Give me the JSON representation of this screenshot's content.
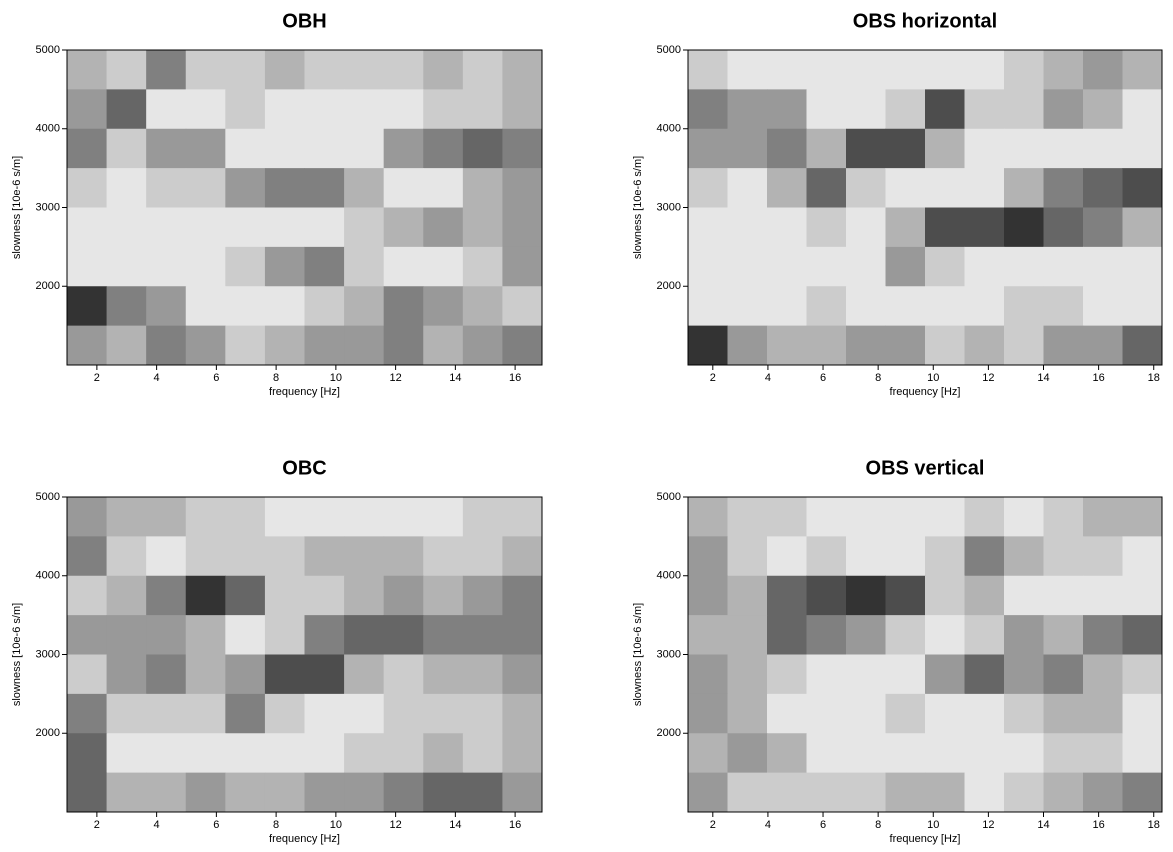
{
  "chart_data": [
    {
      "type": "heatmap",
      "title": "OBH",
      "x_label": "frequency [Hz]",
      "y_label": "slowness [10e-6 s/m]",
      "xlim": [
        1,
        16.9
      ],
      "ylim": [
        1000,
        5000
      ],
      "xticks": [
        2,
        4,
        6,
        8,
        10,
        12,
        14,
        16
      ],
      "yticks": [
        2000,
        3000,
        4000,
        5000
      ],
      "colors": [
        "#ffffff",
        "#000000"
      ],
      "z": [
        [
          0.3,
          0.2,
          0.5,
          0.2,
          0.2,
          0.3,
          0.2,
          0.2,
          0.2,
          0.3,
          0.2,
          0.3
        ],
        [
          0.4,
          0.6,
          0.1,
          0.1,
          0.2,
          0.1,
          0.1,
          0.1,
          0.1,
          0.2,
          0.2,
          0.3
        ],
        [
          0.5,
          0.2,
          0.4,
          0.4,
          0.1,
          0.1,
          0.1,
          0.1,
          0.4,
          0.5,
          0.6,
          0.5
        ],
        [
          0.2,
          0.1,
          0.2,
          0.2,
          0.4,
          0.5,
          0.5,
          0.3,
          0.1,
          0.1,
          0.3,
          0.4
        ],
        [
          0.1,
          0.1,
          0.1,
          0.1,
          0.1,
          0.1,
          0.1,
          0.2,
          0.3,
          0.4,
          0.3,
          0.4
        ],
        [
          0.1,
          0.1,
          0.1,
          0.1,
          0.2,
          0.4,
          0.5,
          0.2,
          0.1,
          0.1,
          0.2,
          0.4
        ],
        [
          0.8,
          0.5,
          0.4,
          0.1,
          0.1,
          0.1,
          0.2,
          0.3,
          0.5,
          0.4,
          0.3,
          0.2
        ],
        [
          0.4,
          0.3,
          0.5,
          0.4,
          0.2,
          0.3,
          0.4,
          0.4,
          0.5,
          0.3,
          0.4,
          0.5
        ]
      ]
    },
    {
      "type": "heatmap",
      "title": "OBS horizontal",
      "x_label": "frequency [Hz]",
      "y_label": "slowness [10e-6 s/m]",
      "xlim": [
        1.1,
        18.3
      ],
      "ylim": [
        1000,
        5000
      ],
      "xticks": [
        2,
        4,
        6,
        8,
        10,
        12,
        14,
        16,
        18
      ],
      "yticks": [
        2000,
        3000,
        4000,
        5000
      ],
      "colors": [
        "#ffffff",
        "#000000"
      ],
      "z": [
        [
          0.2,
          0.1,
          0.1,
          0.1,
          0.1,
          0.1,
          0.1,
          0.1,
          0.2,
          0.3,
          0.4,
          0.3
        ],
        [
          0.5,
          0.4,
          0.4,
          0.1,
          0.1,
          0.2,
          0.7,
          0.2,
          0.2,
          0.4,
          0.3,
          0.1
        ],
        [
          0.4,
          0.4,
          0.5,
          0.3,
          0.7,
          0.7,
          0.3,
          0.1,
          0.1,
          0.1,
          0.1,
          0.1
        ],
        [
          0.2,
          0.1,
          0.3,
          0.6,
          0.2,
          0.1,
          0.1,
          0.1,
          0.3,
          0.5,
          0.6,
          0.7
        ],
        [
          0.1,
          0.1,
          0.1,
          0.2,
          0.1,
          0.3,
          0.7,
          0.7,
          0.8,
          0.6,
          0.5,
          0.3
        ],
        [
          0.1,
          0.1,
          0.1,
          0.1,
          0.1,
          0.4,
          0.2,
          0.1,
          0.1,
          0.1,
          0.1,
          0.1
        ],
        [
          0.1,
          0.1,
          0.1,
          0.2,
          0.1,
          0.1,
          0.1,
          0.1,
          0.2,
          0.2,
          0.1,
          0.1
        ],
        [
          0.8,
          0.4,
          0.3,
          0.3,
          0.4,
          0.4,
          0.2,
          0.3,
          0.2,
          0.4,
          0.4,
          0.6
        ]
      ]
    },
    {
      "type": "heatmap",
      "title": "OBC",
      "x_label": "frequency [Hz]",
      "y_label": "slowness [10e-6 s/m]",
      "xlim": [
        1,
        16.9
      ],
      "ylim": [
        1000,
        5000
      ],
      "xticks": [
        2,
        4,
        6,
        8,
        10,
        12,
        14,
        16
      ],
      "yticks": [
        2000,
        3000,
        4000,
        5000
      ],
      "colors": [
        "#ffffff",
        "#000000"
      ],
      "z": [
        [
          0.4,
          0.3,
          0.3,
          0.2,
          0.2,
          0.1,
          0.1,
          0.1,
          0.1,
          0.1,
          0.2,
          0.2
        ],
        [
          0.5,
          0.2,
          0.1,
          0.2,
          0.2,
          0.2,
          0.3,
          0.3,
          0.3,
          0.2,
          0.2,
          0.3
        ],
        [
          0.2,
          0.3,
          0.5,
          0.8,
          0.6,
          0.2,
          0.2,
          0.3,
          0.4,
          0.3,
          0.4,
          0.5
        ],
        [
          0.4,
          0.4,
          0.4,
          0.3,
          0.1,
          0.2,
          0.5,
          0.6,
          0.6,
          0.5,
          0.5,
          0.5
        ],
        [
          0.2,
          0.4,
          0.5,
          0.3,
          0.4,
          0.7,
          0.7,
          0.3,
          0.2,
          0.3,
          0.3,
          0.4
        ],
        [
          0.5,
          0.2,
          0.2,
          0.2,
          0.5,
          0.2,
          0.1,
          0.1,
          0.2,
          0.2,
          0.2,
          0.3
        ],
        [
          0.6,
          0.1,
          0.1,
          0.1,
          0.1,
          0.1,
          0.1,
          0.2,
          0.2,
          0.3,
          0.2,
          0.3
        ],
        [
          0.6,
          0.3,
          0.3,
          0.4,
          0.3,
          0.3,
          0.4,
          0.4,
          0.5,
          0.6,
          0.6,
          0.4
        ]
      ]
    },
    {
      "type": "heatmap",
      "title": "OBS vertical",
      "x_label": "frequency [Hz]",
      "y_label": "slowness [10e-6 s/m]",
      "xlim": [
        1.1,
        18.3
      ],
      "ylim": [
        1000,
        5000
      ],
      "xticks": [
        2,
        4,
        6,
        8,
        10,
        12,
        14,
        16,
        18
      ],
      "yticks": [
        2000,
        3000,
        4000,
        5000
      ],
      "colors": [
        "#ffffff",
        "#000000"
      ],
      "z": [
        [
          0.3,
          0.2,
          0.2,
          0.1,
          0.1,
          0.1,
          0.1,
          0.2,
          0.1,
          0.2,
          0.3,
          0.3
        ],
        [
          0.4,
          0.2,
          0.1,
          0.2,
          0.1,
          0.1,
          0.2,
          0.5,
          0.3,
          0.2,
          0.2,
          0.1
        ],
        [
          0.4,
          0.3,
          0.6,
          0.7,
          0.8,
          0.7,
          0.2,
          0.3,
          0.1,
          0.1,
          0.1,
          0.1
        ],
        [
          0.3,
          0.3,
          0.6,
          0.5,
          0.4,
          0.2,
          0.1,
          0.2,
          0.4,
          0.3,
          0.5,
          0.6
        ],
        [
          0.4,
          0.3,
          0.2,
          0.1,
          0.1,
          0.1,
          0.4,
          0.6,
          0.4,
          0.5,
          0.3,
          0.2
        ],
        [
          0.4,
          0.3,
          0.1,
          0.1,
          0.1,
          0.2,
          0.1,
          0.1,
          0.2,
          0.3,
          0.3,
          0.1
        ],
        [
          0.3,
          0.4,
          0.3,
          0.1,
          0.1,
          0.1,
          0.1,
          0.1,
          0.1,
          0.2,
          0.2,
          0.1
        ],
        [
          0.4,
          0.2,
          0.2,
          0.2,
          0.2,
          0.3,
          0.3,
          0.1,
          0.2,
          0.3,
          0.4,
          0.5
        ]
      ]
    }
  ]
}
